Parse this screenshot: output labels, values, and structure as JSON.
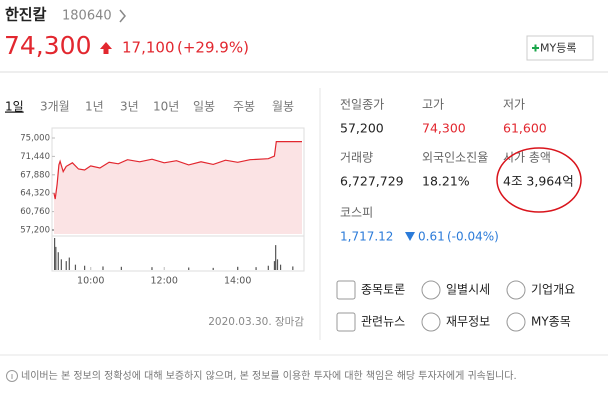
{
  "header": {
    "name": "한진칼",
    "code": "180640",
    "price": "74,300",
    "change": "17,100",
    "change_pct": "(+29.9%)",
    "my_button": "MY등록"
  },
  "tabs": [
    "1일",
    "3개월",
    "1년",
    "3년",
    "10년",
    "일봉",
    "주봉",
    "월봉"
  ],
  "chart": {
    "ylim": [
      57200,
      75000
    ],
    "yticks": [
      {
        "value": 75000,
        "label": "75,000"
      },
      {
        "value": 71440,
        "label": "71,440"
      },
      {
        "value": 67880,
        "label": "67,880"
      },
      {
        "value": 64320,
        "label": "64,320"
      },
      {
        "value": 60760,
        "label": "60,760"
      },
      {
        "value": 57200,
        "label": "57,200"
      }
    ],
    "xlim": [
      540,
      945
    ],
    "xticks": [
      {
        "value": 600,
        "label": "10:00"
      },
      {
        "value": 720,
        "label": "12:00"
      },
      {
        "value": 840,
        "label": "14:00"
      }
    ],
    "price_x": [
      540,
      542,
      545,
      548,
      550,
      555,
      560,
      570,
      580,
      590,
      600,
      615,
      630,
      645,
      660,
      680,
      700,
      720,
      740,
      760,
      780,
      800,
      820,
      840,
      860,
      890,
      900,
      903,
      945
    ],
    "price": [
      64300,
      63200,
      66000,
      69800,
      70500,
      68500,
      69500,
      70200,
      69000,
      68800,
      69600,
      69200,
      70300,
      70000,
      70800,
      70400,
      70900,
      70200,
      70600,
      69800,
      70400,
      69900,
      70700,
      70300,
      70800,
      71000,
      71500,
      74300,
      74300
    ],
    "volume_x": [
      541,
      543,
      547,
      552,
      560,
      565,
      575,
      590,
      620,
      650,
      700,
      760,
      800,
      840,
      870,
      890,
      900,
      902,
      905,
      910,
      930
    ],
    "volume": [
      900000,
      650000,
      500000,
      300000,
      250000,
      350000,
      150000,
      120000,
      100000,
      90000,
      80000,
      70000,
      60000,
      90000,
      80000,
      120000,
      250000,
      700000,
      300000,
      150000,
      100000
    ],
    "date": "2020.03.30. 장마감"
  },
  "stats": [
    {
      "label": "전일종가",
      "value": "57,200"
    },
    {
      "label": "고가",
      "value": "74,300"
    },
    {
      "label": "저가",
      "value": "61,600"
    },
    {
      "label": "거래량",
      "value": "6,727,729"
    },
    {
      "label": "외국인소진율",
      "value": "18.21%"
    },
    {
      "label": "시가 총액",
      "value": "4조 3,964억"
    }
  ],
  "index": {
    "label": "코스피",
    "value": "1,717.12",
    "change": "0.61",
    "change_pct": "(-0.04%)"
  },
  "links": [
    "종목토론",
    "일별시세",
    "기업개요",
    "관련뉴스",
    "재무정보",
    "MY종목"
  ],
  "footer": "네이버는 본 정보의 정확성에 대해 보증하지 않으며, 본 정보를 이용한 투자에 대한 책임은 해당 투자자에게 귀속됩니다."
}
